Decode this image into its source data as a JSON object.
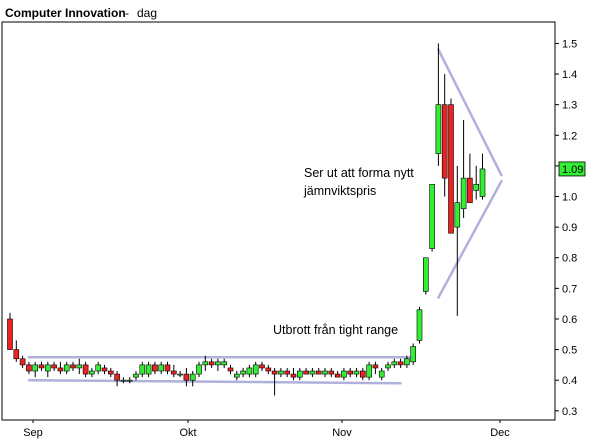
{
  "chart_data": {
    "type": "candlestick",
    "title": "Computer Innovation",
    "title_separator": "-",
    "subtitle": "dag",
    "ylim": [
      0.27,
      1.57
    ],
    "yticks": [
      "0.3",
      "0.4",
      "0.5",
      "0.6",
      "0.7",
      "0.8",
      "0.9",
      "1.0",
      "1.1",
      "1.2",
      "1.3",
      "1.4",
      "1.5"
    ],
    "x_tick_labels": [
      "Sep",
      "Okt",
      "Nov",
      "Dec"
    ],
    "last_price_label": "1.09",
    "colors": {
      "up": "#33ee33",
      "down": "#ee2222",
      "wick": "#000000",
      "trendline": "#b0b0dd",
      "last_price_bg": "#33ee33",
      "frame": "#000000"
    },
    "annotations": [
      {
        "text": "Ser ut att forma nytt"
      },
      {
        "text": "jämnviktspris"
      },
      {
        "text": "Utbrott från tight range"
      }
    ],
    "candles": [
      {
        "o": 0.6,
        "h": 0.62,
        "l": 0.5,
        "c": 0.5
      },
      {
        "o": 0.5,
        "h": 0.53,
        "l": 0.46,
        "c": 0.47
      },
      {
        "o": 0.47,
        "h": 0.48,
        "l": 0.44,
        "c": 0.45
      },
      {
        "o": 0.45,
        "h": 0.46,
        "l": 0.42,
        "c": 0.43
      },
      {
        "o": 0.43,
        "h": 0.46,
        "l": 0.41,
        "c": 0.45
      },
      {
        "o": 0.45,
        "h": 0.46,
        "l": 0.43,
        "c": 0.44
      },
      {
        "o": 0.43,
        "h": 0.46,
        "l": 0.41,
        "c": 0.45
      },
      {
        "o": 0.45,
        "h": 0.46,
        "l": 0.43,
        "c": 0.44
      },
      {
        "o": 0.44,
        "h": 0.46,
        "l": 0.42,
        "c": 0.43
      },
      {
        "o": 0.43,
        "h": 0.46,
        "l": 0.42,
        "c": 0.45
      },
      {
        "o": 0.45,
        "h": 0.46,
        "l": 0.43,
        "c": 0.44
      },
      {
        "o": 0.44,
        "h": 0.47,
        "l": 0.42,
        "c": 0.45
      },
      {
        "o": 0.45,
        "h": 0.46,
        "l": 0.41,
        "c": 0.42
      },
      {
        "o": 0.42,
        "h": 0.44,
        "l": 0.41,
        "c": 0.43
      },
      {
        "o": 0.43,
        "h": 0.46,
        "l": 0.42,
        "c": 0.45
      },
      {
        "o": 0.44,
        "h": 0.45,
        "l": 0.42,
        "c": 0.43
      },
      {
        "o": 0.43,
        "h": 0.44,
        "l": 0.41,
        "c": 0.42
      },
      {
        "o": 0.42,
        "h": 0.43,
        "l": 0.38,
        "c": 0.4
      },
      {
        "o": 0.4,
        "h": 0.41,
        "l": 0.39,
        "c": 0.4
      },
      {
        "o": 0.4,
        "h": 0.41,
        "l": 0.39,
        "c": 0.4
      },
      {
        "o": 0.41,
        "h": 0.43,
        "l": 0.4,
        "c": 0.42
      },
      {
        "o": 0.42,
        "h": 0.46,
        "l": 0.41,
        "c": 0.45
      },
      {
        "o": 0.42,
        "h": 0.46,
        "l": 0.41,
        "c": 0.45
      },
      {
        "o": 0.45,
        "h": 0.46,
        "l": 0.42,
        "c": 0.43
      },
      {
        "o": 0.43,
        "h": 0.46,
        "l": 0.42,
        "c": 0.45
      },
      {
        "o": 0.45,
        "h": 0.46,
        "l": 0.42,
        "c": 0.43
      },
      {
        "o": 0.43,
        "h": 0.45,
        "l": 0.41,
        "c": 0.42
      },
      {
        "o": 0.42,
        "h": 0.43,
        "l": 0.41,
        "c": 0.42
      },
      {
        "o": 0.42,
        "h": 0.44,
        "l": 0.38,
        "c": 0.4
      },
      {
        "o": 0.4,
        "h": 0.43,
        "l": 0.38,
        "c": 0.42
      },
      {
        "o": 0.42,
        "h": 0.46,
        "l": 0.41,
        "c": 0.45
      },
      {
        "o": 0.45,
        "h": 0.48,
        "l": 0.43,
        "c": 0.46
      },
      {
        "o": 0.46,
        "h": 0.47,
        "l": 0.44,
        "c": 0.45
      },
      {
        "o": 0.45,
        "h": 0.47,
        "l": 0.43,
        "c": 0.46
      },
      {
        "o": 0.45,
        "h": 0.47,
        "l": 0.44,
        "c": 0.46
      },
      {
        "o": 0.44,
        "h": 0.45,
        "l": 0.42,
        "c": 0.43
      },
      {
        "o": 0.41,
        "h": 0.43,
        "l": 0.4,
        "c": 0.42
      },
      {
        "o": 0.42,
        "h": 0.44,
        "l": 0.41,
        "c": 0.43
      },
      {
        "o": 0.42,
        "h": 0.45,
        "l": 0.41,
        "c": 0.44
      },
      {
        "o": 0.42,
        "h": 0.46,
        "l": 0.41,
        "c": 0.45
      },
      {
        "o": 0.45,
        "h": 0.46,
        "l": 0.43,
        "c": 0.44
      },
      {
        "o": 0.44,
        "h": 0.45,
        "l": 0.42,
        "c": 0.43
      },
      {
        "o": 0.43,
        "h": 0.44,
        "l": 0.35,
        "c": 0.42
      },
      {
        "o": 0.42,
        "h": 0.44,
        "l": 0.41,
        "c": 0.43
      },
      {
        "o": 0.43,
        "h": 0.44,
        "l": 0.41,
        "c": 0.42
      },
      {
        "o": 0.42,
        "h": 0.44,
        "l": 0.4,
        "c": 0.41
      },
      {
        "o": 0.41,
        "h": 0.44,
        "l": 0.4,
        "c": 0.43
      },
      {
        "o": 0.43,
        "h": 0.44,
        "l": 0.42,
        "c": 0.42
      },
      {
        "o": 0.42,
        "h": 0.44,
        "l": 0.41,
        "c": 0.43
      },
      {
        "o": 0.43,
        "h": 0.44,
        "l": 0.42,
        "c": 0.42
      },
      {
        "o": 0.42,
        "h": 0.44,
        "l": 0.41,
        "c": 0.43
      },
      {
        "o": 0.43,
        "h": 0.44,
        "l": 0.41,
        "c": 0.42
      },
      {
        "o": 0.42,
        "h": 0.43,
        "l": 0.41,
        "c": 0.41
      },
      {
        "o": 0.41,
        "h": 0.44,
        "l": 0.4,
        "c": 0.43
      },
      {
        "o": 0.43,
        "h": 0.44,
        "l": 0.41,
        "c": 0.42
      },
      {
        "o": 0.42,
        "h": 0.44,
        "l": 0.41,
        "c": 0.43
      },
      {
        "o": 0.43,
        "h": 0.44,
        "l": 0.4,
        "c": 0.41
      },
      {
        "o": 0.41,
        "h": 0.46,
        "l": 0.4,
        "c": 0.45
      },
      {
        "o": 0.45,
        "h": 0.46,
        "l": 0.42,
        "c": 0.44
      },
      {
        "o": 0.41,
        "h": 0.44,
        "l": 0.4,
        "c": 0.43
      },
      {
        "o": 0.44,
        "h": 0.46,
        "l": 0.43,
        "c": 0.45
      },
      {
        "o": 0.45,
        "h": 0.47,
        "l": 0.44,
        "c": 0.46
      },
      {
        "o": 0.46,
        "h": 0.47,
        "l": 0.44,
        "c": 0.45
      },
      {
        "o": 0.45,
        "h": 0.48,
        "l": 0.44,
        "c": 0.47
      },
      {
        "o": 0.46,
        "h": 0.52,
        "l": 0.45,
        "c": 0.51
      },
      {
        "o": 0.53,
        "h": 0.64,
        "l": 0.52,
        "c": 0.63
      },
      {
        "o": 0.69,
        "h": 0.8,
        "l": 0.68,
        "c": 0.8
      },
      {
        "o": 0.83,
        "h": 1.04,
        "l": 0.82,
        "c": 1.04
      },
      {
        "o": 1.14,
        "h": 1.5,
        "l": 1.1,
        "c": 1.3
      },
      {
        "o": 1.3,
        "h": 1.4,
        "l": 1.0,
        "c": 1.06
      },
      {
        "o": 1.3,
        "h": 1.32,
        "l": 0.88,
        "c": 0.88
      },
      {
        "o": 0.9,
        "h": 1.1,
        "l": 0.61,
        "c": 0.98
      },
      {
        "o": 0.96,
        "h": 1.25,
        "l": 0.93,
        "c": 1.06
      },
      {
        "o": 1.06,
        "h": 1.14,
        "l": 0.98,
        "c": 0.98
      },
      {
        "o": 1.02,
        "h": 1.1,
        "l": 0.99,
        "c": 1.04
      },
      {
        "o": 1.0,
        "h": 1.14,
        "l": 0.99,
        "c": 1.09
      }
    ],
    "trendlines": [
      {
        "x1": 3,
        "y1": 0.475,
        "x2": 64,
        "y2": 0.475
      },
      {
        "x1": 3,
        "y1": 0.4,
        "x2": 62,
        "y2": 0.39
      },
      {
        "x1": 68,
        "y1": 1.48,
        "x2": 78,
        "y2": 1.07
      },
      {
        "x1": 68,
        "y1": 0.67,
        "x2": 78,
        "y2": 1.05
      }
    ]
  }
}
